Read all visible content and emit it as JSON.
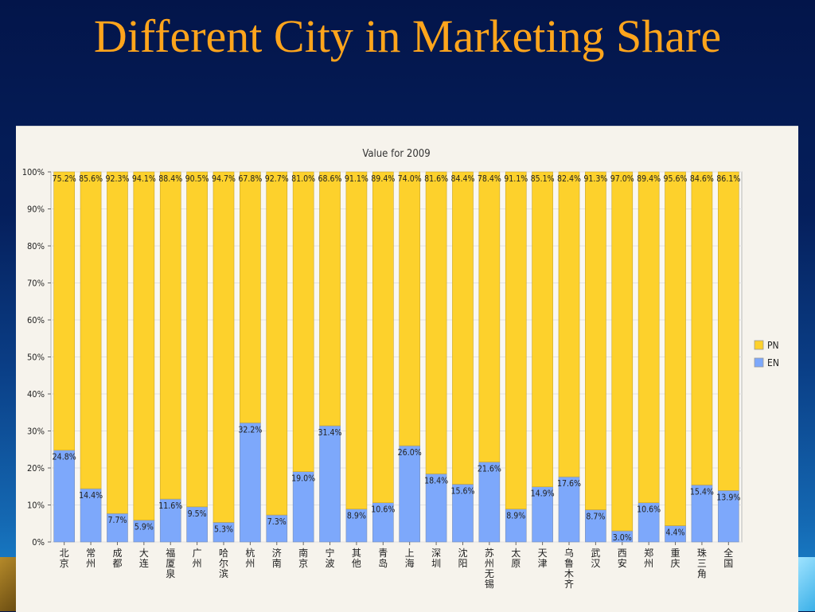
{
  "slide": {
    "title": "Different City in Marketing Share"
  },
  "colors": {
    "pn": "#fdd12c",
    "en": "#7da8fb",
    "title": "#ffa51c"
  },
  "chart_data": {
    "type": "bar",
    "stacked": true,
    "percent_stacked": true,
    "title": "Value for 2009",
    "xlabel": "",
    "ylabel": "",
    "ylim": [
      0,
      100
    ],
    "y_ticks": [
      "0%",
      "10%",
      "20%",
      "30%",
      "40%",
      "50%",
      "60%",
      "70%",
      "80%",
      "90%",
      "100%"
    ],
    "grid": true,
    "legend_position": "right",
    "categories": [
      "北京",
      "常州",
      "成都",
      "大连",
      "福厦泉",
      "广州",
      "哈尔滨",
      "杭州",
      "济南",
      "南京",
      "宁波",
      "其他",
      "青岛",
      "上海",
      "深圳",
      "沈阳",
      "苏州无锡",
      "太原",
      "天津",
      "乌鲁木齐",
      "武汉",
      "西安",
      "郑州",
      "重庆",
      "珠三角",
      "全国"
    ],
    "series": [
      {
        "name": "EN",
        "values": [
          24.8,
          14.4,
          7.7,
          5.9,
          11.6,
          9.5,
          5.3,
          32.2,
          7.3,
          19.0,
          31.4,
          8.9,
          10.6,
          26.0,
          18.4,
          15.6,
          21.6,
          8.9,
          14.9,
          17.6,
          8.7,
          3.0,
          10.6,
          4.4,
          15.4,
          13.9
        ],
        "labels": [
          "24.8%",
          "14.4%",
          "7.7%",
          "5.9%",
          "11.6%",
          "9.5%",
          "5.3%",
          "32.2%",
          "7.3%",
          "19.0%",
          "31.4%",
          "8.9%",
          "10.6%",
          "26.0%",
          "18.4%",
          "15.6%",
          "21.6%",
          "8.9%",
          "14.9%",
          "17.6%",
          "8.7%",
          "3.0%",
          "10.6%",
          "4.4%",
          "15.4%",
          "13.9%"
        ]
      },
      {
        "name": "PN",
        "values": [
          75.2,
          85.6,
          92.3,
          94.1,
          88.4,
          90.5,
          94.7,
          67.8,
          92.7,
          81.0,
          68.6,
          91.1,
          89.4,
          74.0,
          81.6,
          84.4,
          78.4,
          91.1,
          85.1,
          82.4,
          91.3,
          97.0,
          89.4,
          95.6,
          84.6,
          86.1
        ],
        "labels": [
          "75.2%",
          "85.6%",
          "92.3%",
          "94.1%",
          "88.4%",
          "90.5%",
          "94.7%",
          "67.8%",
          "92.7%",
          "81.0%",
          "68.6%",
          "91.1%",
          "89.4%",
          "74.0%",
          "81.6%",
          "84.4%",
          "78.4%",
          "91.1%",
          "85.1%",
          "82.4%",
          "91.3%",
          "97.0%",
          "89.4%",
          "95.6%",
          "84.6%",
          "86.1%"
        ]
      }
    ],
    "legend": [
      "PN",
      "EN"
    ]
  }
}
